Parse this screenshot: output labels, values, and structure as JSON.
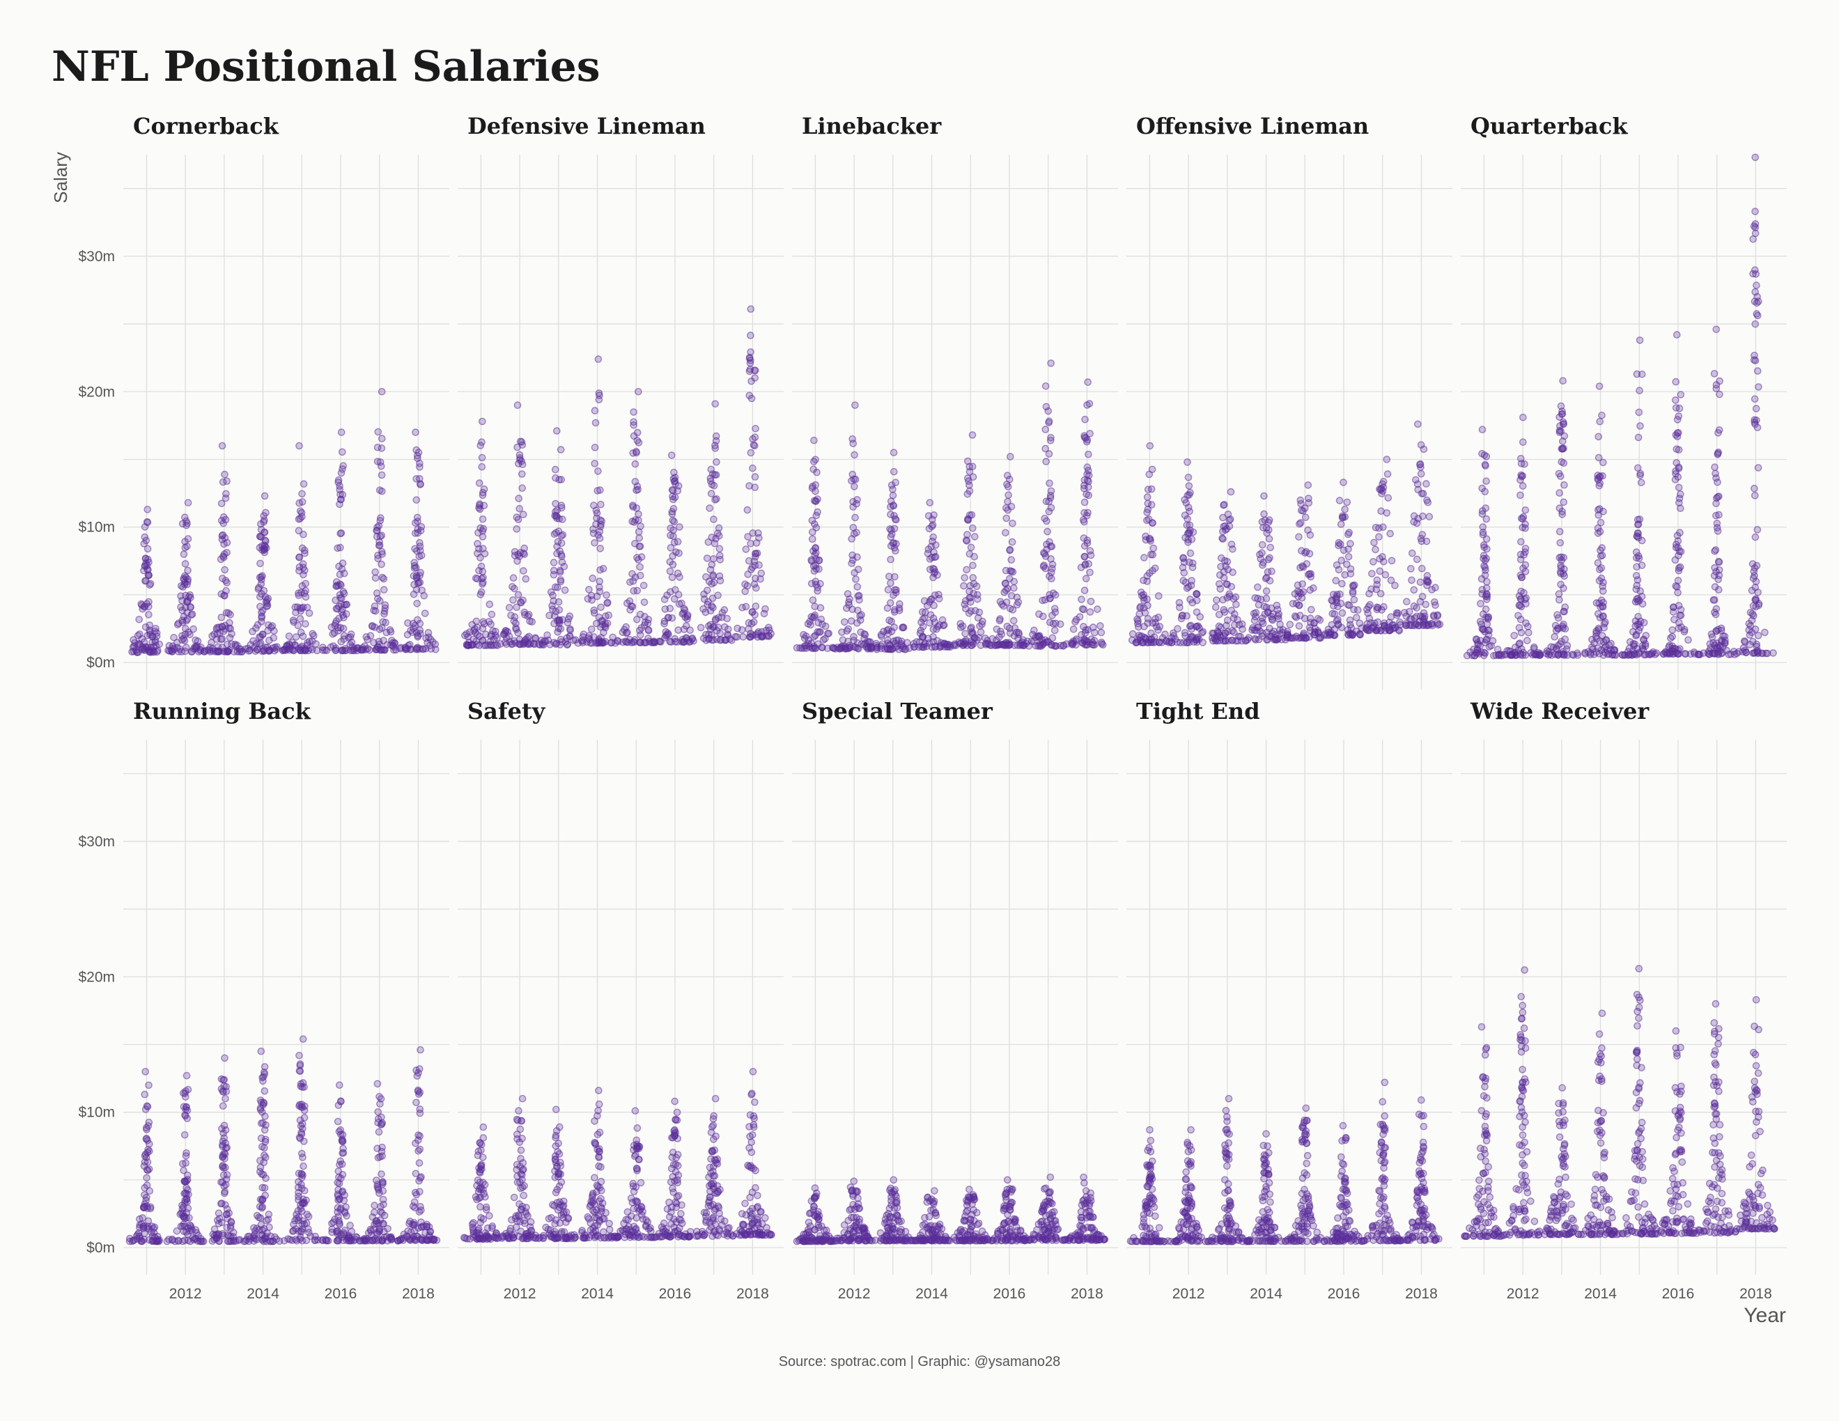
{
  "title": "NFL Positional Salaries",
  "caption": "Source: spotrac.com | Graphic: @ysamano28",
  "colors": {
    "point": "#5b2e99",
    "background": "#fbfbf9",
    "grid": "#dedede",
    "text": "#1b1b1b",
    "axis_text": "#555555"
  },
  "chart_data": {
    "type": "scatter",
    "subtype": "beeswarm small multiples",
    "xlabel": "Year",
    "ylabel": "Salary",
    "x_ticks": [
      2012,
      2014,
      2016,
      2018
    ],
    "x_tick_labels": [
      "2012",
      "2014",
      "2016",
      "2018"
    ],
    "xlim": [
      2010.4,
      2018.8
    ],
    "years": [
      2011,
      2012,
      2013,
      2014,
      2015,
      2016,
      2017,
      2018
    ],
    "y_ticks": [
      0,
      10,
      20,
      30
    ],
    "y_tick_labels": [
      "$0m",
      "$10m",
      "$20m",
      "$30m"
    ],
    "ylim": [
      -2,
      37.5
    ],
    "y_unit": "$m",
    "grid": true,
    "legend": "none",
    "panels": [
      {
        "name": "Cornerback",
        "max": [
          11.3,
          11.8,
          16.0,
          12.3,
          16.0,
          17.0,
          20.0,
          17.0
        ],
        "median": [
          1.8,
          1.9,
          1.9,
          2.0,
          2.1,
          2.1,
          2.2,
          2.3
        ]
      },
      {
        "name": "Defensive Lineman",
        "max": [
          17.8,
          19.0,
          17.1,
          22.4,
          20.0,
          15.3,
          19.1,
          26.1
        ],
        "median": [
          3.0,
          3.2,
          3.1,
          3.4,
          3.5,
          3.6,
          3.9,
          4.5
        ]
      },
      {
        "name": "Linebacker",
        "max": [
          16.4,
          19.0,
          15.5,
          11.8,
          16.8,
          15.2,
          22.1,
          20.7
        ],
        "median": [
          2.5,
          2.4,
          2.3,
          2.7,
          3.0,
          3.0,
          2.9,
          3.1
        ]
      },
      {
        "name": "Offensive Lineman",
        "max": [
          16.0,
          14.8,
          12.6,
          12.3,
          13.1,
          13.3,
          15.0,
          17.6
        ],
        "median": [
          3.5,
          3.5,
          3.8,
          4.0,
          4.3,
          4.8,
          5.6,
          6.5
        ]
      },
      {
        "name": "Quarterback",
        "max": [
          17.2,
          18.1,
          20.8,
          20.4,
          23.8,
          24.2,
          24.6,
          37.3
        ],
        "median": [
          1.2,
          1.3,
          1.3,
          1.3,
          1.3,
          1.5,
          1.4,
          1.6
        ]
      },
      {
        "name": "Running Back",
        "max": [
          13.0,
          12.7,
          14.0,
          14.5,
          15.4,
          12.0,
          12.1,
          14.6
        ],
        "median": [
          1.1,
          1.1,
          1.1,
          1.1,
          1.2,
          1.2,
          1.2,
          1.3
        ]
      },
      {
        "name": "Safety",
        "max": [
          8.9,
          11.0,
          10.2,
          11.6,
          10.1,
          10.8,
          11.0,
          13.0
        ],
        "median": [
          1.5,
          1.6,
          1.6,
          1.7,
          1.8,
          1.9,
          2.0,
          2.2
        ]
      },
      {
        "name": "Special Teamer",
        "max": [
          4.4,
          4.9,
          5.0,
          4.2,
          4.3,
          5.0,
          5.2,
          5.2
        ],
        "median": [
          1.1,
          1.2,
          1.2,
          1.2,
          1.2,
          1.2,
          1.3,
          1.3
        ]
      },
      {
        "name": "Tight End",
        "max": [
          8.7,
          8.7,
          11.0,
          8.4,
          10.3,
          9.0,
          12.2,
          10.9
        ],
        "median": [
          1.0,
          1.0,
          1.0,
          1.1,
          1.1,
          1.1,
          1.2,
          1.3
        ]
      },
      {
        "name": "Wide Receiver",
        "max": [
          16.3,
          20.5,
          11.8,
          17.3,
          20.6,
          16.0,
          18.0,
          18.3
        ],
        "median": [
          2.0,
          2.2,
          2.3,
          2.3,
          2.4,
          2.5,
          2.6,
          3.3
        ]
      }
    ]
  }
}
